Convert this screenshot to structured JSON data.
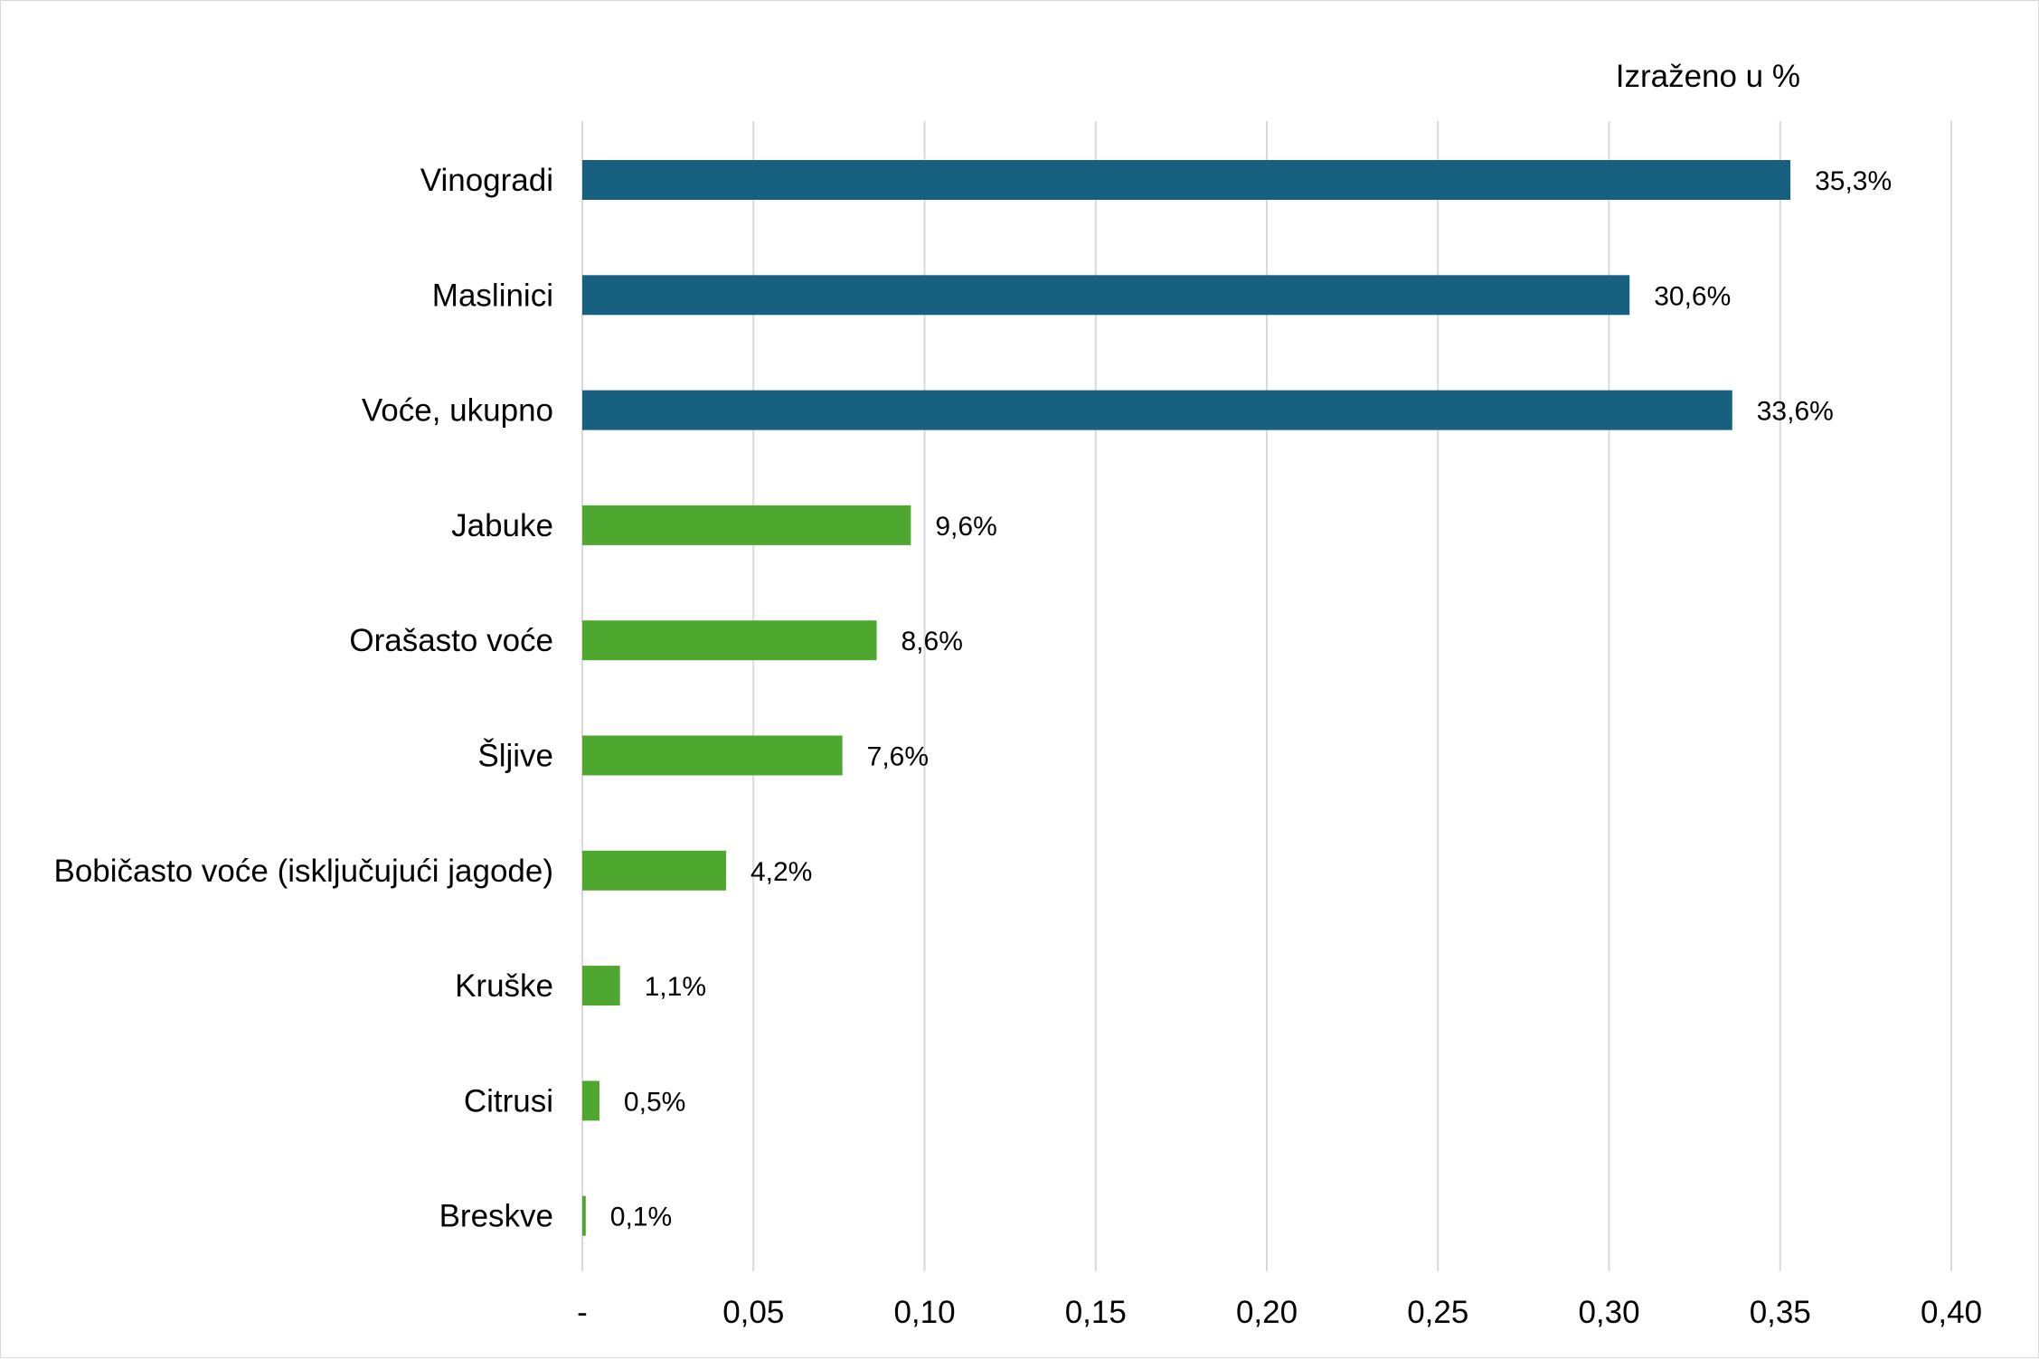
{
  "chart_data": {
    "type": "bar",
    "orientation": "horizontal",
    "note": "Izraženo u %",
    "title": "",
    "xlabel": "",
    "ylabel": "",
    "categories": [
      "Vinogradi",
      "Maslinici",
      "Voće, ukupno",
      "Jabuke",
      "Orašasto voće",
      "Šljive",
      "Bobičasto voće (isključujući jagode)",
      "Kruške",
      "Citrusi",
      "Breskve"
    ],
    "values": [
      0.353,
      0.306,
      0.336,
      0.096,
      0.086,
      0.076,
      0.042,
      0.011,
      0.005,
      0.001
    ],
    "data_labels": [
      "35,3%",
      "30,6%",
      "33,6%",
      "9,6%",
      "8,6%",
      "7,6%",
      "4,2%",
      "1,1%",
      "0,5%",
      "0,1%"
    ],
    "bar_colors": [
      "#17607f",
      "#17607f",
      "#17607f",
      "#4ea72e",
      "#4ea72e",
      "#4ea72e",
      "#4ea72e",
      "#4ea72e",
      "#4ea72e",
      "#4ea72e"
    ],
    "xlim": [
      0,
      0.4
    ],
    "xticks": [
      0,
      0.05,
      0.1,
      0.15,
      0.2,
      0.25,
      0.3,
      0.35,
      0.4
    ],
    "xtick_labels": [
      "-",
      "0,05",
      "0,10",
      "0,15",
      "0,20",
      "0,25",
      "0,30",
      "0,35",
      "0,40"
    ],
    "grid": "vertical",
    "legend": "none"
  }
}
